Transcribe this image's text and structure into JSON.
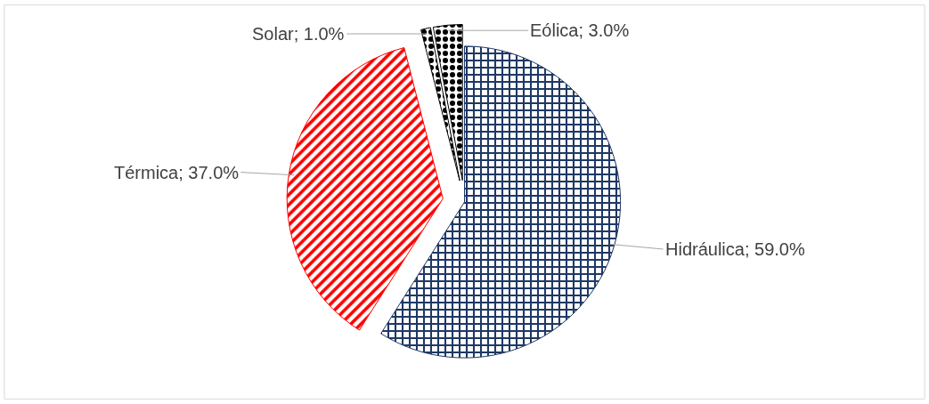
{
  "chart_data": {
    "type": "pie",
    "categories": [
      "Hidráulica",
      "Térmica",
      "Solar",
      "Eólica"
    ],
    "values": [
      59.0,
      37.0,
      1.0,
      3.0
    ],
    "value_labels": [
      "59.0%",
      "37.0%",
      "1.0%",
      "3.0%"
    ],
    "colors": [
      "#1f3864",
      "#ff0000",
      "#000000",
      "#000000"
    ],
    "legend": false
  }
}
